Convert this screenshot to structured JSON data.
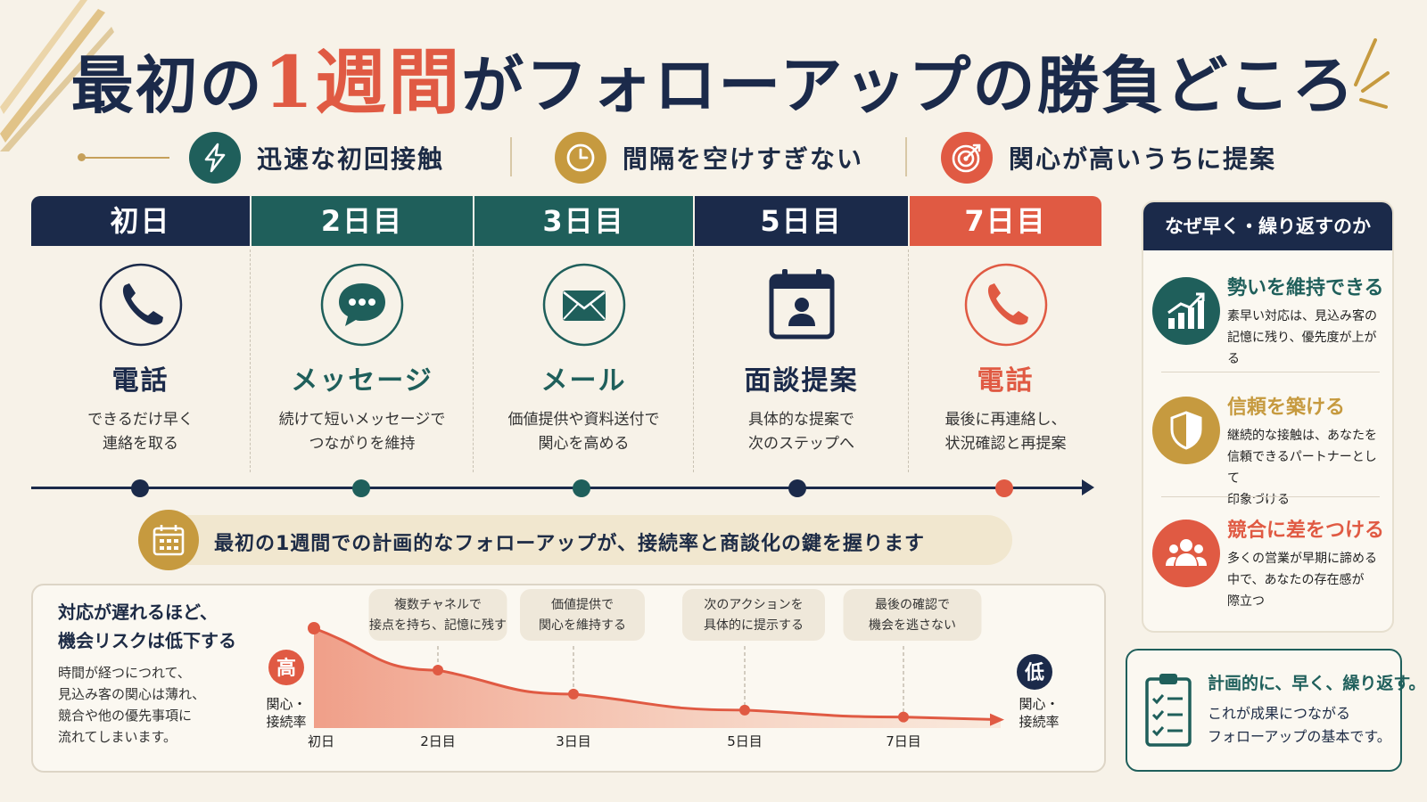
{
  "title": {
    "before": "最初の",
    "accent": "1週間",
    "after": "がフォローアップの勝負どころ"
  },
  "principles": [
    {
      "label": "迅速な初回接触",
      "icon": "lightning-icon",
      "color": "#1f5f5b"
    },
    {
      "label": "間隔を空けすぎない",
      "icon": "clock-icon",
      "color": "#c69a3f"
    },
    {
      "label": "関心が高いうちに提案",
      "icon": "target-icon",
      "color": "#e05a43"
    }
  ],
  "days": [
    {
      "day": "初日",
      "title": "電話",
      "desc": "できるだけ早く\n連絡を取る",
      "color": "#1b2a4a",
      "title_color": "#1b2a4a",
      "icon": "phone-icon"
    },
    {
      "day": "2日目",
      "title": "メッセージ",
      "desc": "続けて短いメッセージで\nつながりを維持",
      "color": "#1f5f5b",
      "title_color": "#1f5f5b",
      "icon": "chat-bubble-icon"
    },
    {
      "day": "3日目",
      "title": "メール",
      "desc": "価値提供や資料送付で\n関心を高める",
      "color": "#1f5f5b",
      "title_color": "#1f5f5b",
      "icon": "envelope-icon"
    },
    {
      "day": "5日目",
      "title": "面談提案",
      "desc": "具体的な提案で\n次のステップへ",
      "color": "#1b2a4a",
      "title_color": "#1b2a4a",
      "icon": "calendar-person-icon"
    },
    {
      "day": "7日目",
      "title": "電話",
      "desc": "最後に再連絡し、\n状況確認と再提案",
      "color": "#e05a43",
      "title_color": "#e05a43",
      "icon": "phone-icon"
    }
  ],
  "banner": "最初の1週間での計画的なフォローアップが、接続率と商談化の鍵を握ります",
  "risk": {
    "heading": "対応が遅れるほど、\n機会リスクは低下する",
    "body": "時間が経つにつれて、\n見込み客の関心は薄れ、\n競合や他の優先事項に\n流れてしまいます。",
    "high_badge": "高",
    "low_badge": "低",
    "axis_label_left": "関心・\n接続率",
    "axis_label_right": "関心・\n接続率"
  },
  "chart_data": {
    "type": "area",
    "title": "",
    "categories": [
      "初日",
      "2日目",
      "3日目",
      "5日目",
      "7日目"
    ],
    "values": [
      100,
      58,
      34,
      18,
      11
    ],
    "annotations": [
      {
        "at": "2日目",
        "text": "複数チャネルで\n接点を持ち、記憶に残す"
      },
      {
        "at": "3日目",
        "text": "価値提供で\n関心を維持する"
      },
      {
        "at": "5日目",
        "text": "次のアクションを\n具体的に提示する"
      },
      {
        "at": "7日目",
        "text": "最後の確認で\n機会を逃さない"
      }
    ],
    "ylim": [
      0,
      100
    ],
    "grid": false,
    "legend": "none"
  },
  "side": {
    "heading": "なぜ早く・繰り返すのか",
    "reasons": [
      {
        "title": "勢いを維持できる",
        "desc": "素早い対応は、見込み客の\n記憶に残り、優先度が上がる",
        "color": "#1f5f5b",
        "icon": "growth-chart-icon"
      },
      {
        "title": "信頼を築ける",
        "desc": "継続的な接触は、あなたを\n信頼できるパートナーとして\n印象づける",
        "color": "#c69a3f",
        "icon": "shield-icon"
      },
      {
        "title": "競合に差をつける",
        "desc": "多くの営業が早期に諦める\n中で、あなたの存在感が\n際立つ",
        "color": "#e05a43",
        "icon": "people-icon"
      }
    ]
  },
  "summary": {
    "heading": "計画的に、早く、繰り返す。",
    "body": "これが成果につながる\nフォローアップの基本です。",
    "icon": "checklist-icon"
  }
}
